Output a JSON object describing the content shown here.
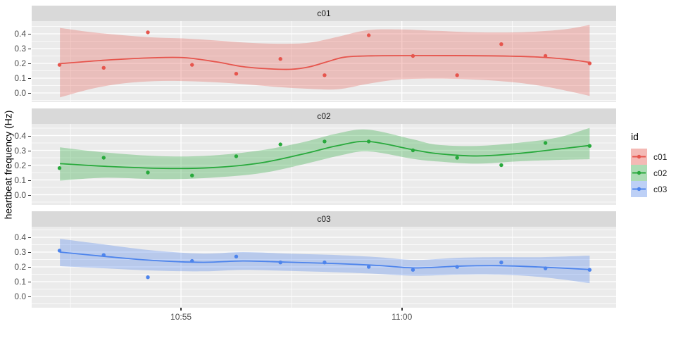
{
  "chart_data": {
    "type": "scatter",
    "description": "Faceted scatter plot with loess smooth lines and confidence bands, one facet per subject id",
    "title": "",
    "ylabel": "heartbeat frequency (Hz)",
    "xlabel": "",
    "facet_variable": "id",
    "x_axis": {
      "note": "t = minutes after 10:50",
      "domain": [
        1.62,
        14.85
      ],
      "ticks": [
        {
          "t": 5,
          "label": "10:55"
        },
        {
          "t": 10,
          "label": "11:00"
        }
      ],
      "minor": [
        2.5,
        7.5,
        12.5
      ]
    },
    "y_axis": {
      "domain": [
        -0.067,
        0.481
      ],
      "ticks": [
        0.4,
        0.3,
        0.2,
        0.1,
        0.0
      ],
      "tick_labels": [
        "0.4",
        "0.3",
        "0.2",
        "0.1",
        "0.0"
      ],
      "minor": [
        0.45,
        0.35,
        0.25,
        0.15,
        0.05,
        -0.05
      ]
    },
    "x_minutes": [
      2.25,
      3.25,
      4.25,
      5.25,
      6.25,
      7.25,
      8.25,
      9.25,
      10.25,
      11.25,
      12.25,
      13.25,
      14.25
    ],
    "facets": [
      {
        "id": "c01",
        "color": "#E6554D",
        "band_color": "rgba(230,85,77,0.30)",
        "legend_fill": "#F4B9B5",
        "points": [
          0.19,
          0.17,
          0.41,
          0.19,
          0.13,
          0.23,
          0.12,
          0.39,
          0.25,
          0.12,
          0.33,
          0.25,
          0.2
        ],
        "smooth_line": [
          [
            2.26,
            0.198
          ],
          [
            3.3,
            0.222
          ],
          [
            4.4,
            0.238
          ],
          [
            5.1,
            0.238
          ],
          [
            5.8,
            0.21
          ],
          [
            6.4,
            0.178
          ],
          [
            7.0,
            0.163
          ],
          [
            7.5,
            0.16
          ],
          [
            7.9,
            0.176
          ],
          [
            8.3,
            0.21
          ],
          [
            8.7,
            0.242
          ],
          [
            9.3,
            0.251
          ],
          [
            10.5,
            0.253
          ],
          [
            12.0,
            0.251
          ],
          [
            13.0,
            0.244
          ],
          [
            13.7,
            0.229
          ],
          [
            14.25,
            0.207
          ]
        ],
        "confidence_band": [
          [
            2.26,
            -0.03,
            0.44
          ],
          [
            3.0,
            0.03,
            0.41
          ],
          [
            3.7,
            0.065,
            0.39
          ],
          [
            4.4,
            0.08,
            0.375
          ],
          [
            5.1,
            0.08,
            0.368
          ],
          [
            5.8,
            0.072,
            0.355
          ],
          [
            6.5,
            0.058,
            0.34
          ],
          [
            7.2,
            0.04,
            0.333
          ],
          [
            7.9,
            0.028,
            0.34
          ],
          [
            8.55,
            0.025,
            0.38
          ],
          [
            9.2,
            0.06,
            0.424
          ],
          [
            9.9,
            0.09,
            0.43
          ],
          [
            10.8,
            0.097,
            0.42
          ],
          [
            11.7,
            0.09,
            0.41
          ],
          [
            12.6,
            0.07,
            0.41
          ],
          [
            13.3,
            0.04,
            0.42
          ],
          [
            13.8,
            0.01,
            0.435
          ],
          [
            14.25,
            -0.02,
            0.46
          ]
        ]
      },
      {
        "id": "c02",
        "color": "#28A93C",
        "band_color": "rgba(40,169,60,0.32)",
        "legend_fill": "#ACDCB4",
        "points": [
          0.18,
          0.25,
          0.15,
          0.13,
          0.26,
          0.34,
          0.36,
          0.36,
          0.3,
          0.25,
          0.2,
          0.35,
          0.33
        ],
        "smooth_line": [
          [
            2.26,
            0.21
          ],
          [
            3.3,
            0.192
          ],
          [
            4.6,
            0.178
          ],
          [
            5.7,
            0.183
          ],
          [
            6.8,
            0.215
          ],
          [
            7.76,
            0.275
          ],
          [
            8.55,
            0.332
          ],
          [
            9.24,
            0.36
          ],
          [
            10.24,
            0.305
          ],
          [
            10.8,
            0.278
          ],
          [
            11.7,
            0.262
          ],
          [
            12.6,
            0.278
          ],
          [
            13.5,
            0.307
          ],
          [
            14.25,
            0.333
          ]
        ],
        "confidence_band": [
          [
            2.26,
            0.095,
            0.32
          ],
          [
            3.3,
            0.115,
            0.285
          ],
          [
            4.57,
            0.105,
            0.26
          ],
          [
            5.69,
            0.115,
            0.265
          ],
          [
            6.8,
            0.145,
            0.3
          ],
          [
            7.76,
            0.205,
            0.355
          ],
          [
            8.55,
            0.262,
            0.415
          ],
          [
            9.24,
            0.293,
            0.44
          ],
          [
            10.24,
            0.243,
            0.375
          ],
          [
            10.8,
            0.225,
            0.338
          ],
          [
            11.7,
            0.21,
            0.33
          ],
          [
            12.6,
            0.225,
            0.35
          ],
          [
            13.5,
            0.235,
            0.385
          ],
          [
            14.25,
            0.24,
            0.452
          ]
        ]
      },
      {
        "id": "c03",
        "color": "#4D84EC",
        "band_color": "rgba(77,132,236,0.32)",
        "legend_fill": "#BDD0F6",
        "points": [
          0.31,
          0.28,
          0.13,
          0.24,
          0.27,
          0.23,
          0.23,
          0.2,
          0.18,
          0.2,
          0.23,
          0.19,
          0.18
        ],
        "smooth_line": [
          [
            2.26,
            0.3
          ],
          [
            3.3,
            0.27
          ],
          [
            4.4,
            0.243
          ],
          [
            5.5,
            0.231
          ],
          [
            6.4,
            0.24
          ],
          [
            7.4,
            0.232
          ],
          [
            8.55,
            0.222
          ],
          [
            9.5,
            0.209
          ],
          [
            10.3,
            0.193
          ],
          [
            11.3,
            0.205
          ],
          [
            12.2,
            0.208
          ],
          [
            13.2,
            0.198
          ],
          [
            14.25,
            0.182
          ]
        ],
        "confidence_band": [
          [
            2.26,
            0.205,
            0.39
          ],
          [
            3.3,
            0.19,
            0.35
          ],
          [
            4.4,
            0.175,
            0.31
          ],
          [
            5.5,
            0.17,
            0.29
          ],
          [
            6.4,
            0.18,
            0.3
          ],
          [
            7.4,
            0.173,
            0.29
          ],
          [
            8.55,
            0.163,
            0.28
          ],
          [
            9.5,
            0.152,
            0.265
          ],
          [
            10.3,
            0.14,
            0.247
          ],
          [
            11.3,
            0.148,
            0.262
          ],
          [
            12.2,
            0.148,
            0.266
          ],
          [
            13.2,
            0.13,
            0.266
          ],
          [
            14.25,
            0.09,
            0.276
          ]
        ]
      }
    ],
    "legend": {
      "title": "id",
      "entries": [
        "c01",
        "c02",
        "c03"
      ],
      "position": "right"
    },
    "theme": {
      "panel_background": "#EBEBEB",
      "strip_background": "#D9D9D9",
      "gridline_color": "#FFFFFF",
      "axis_text_color": "#4D4D4D",
      "strip_text_color": "#1A1A1A",
      "figure_background": "#FFFFFF"
    }
  }
}
